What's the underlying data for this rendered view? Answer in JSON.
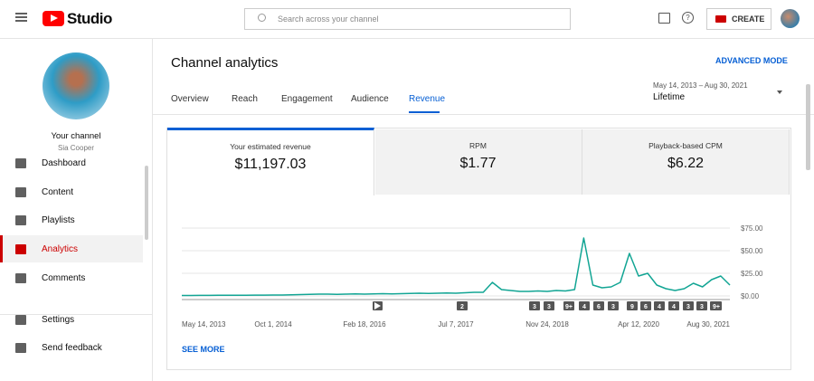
{
  "header": {
    "logo": "Studio",
    "search": "Search across your channel",
    "create": "CREATE"
  },
  "sidebar": {
    "channel_title": "Your channel",
    "channel_name": "Sia Cooper",
    "nav": [
      "Dashboard",
      "Content",
      "Playlists",
      "Analytics",
      "Comments",
      "Settings",
      "Send feedback"
    ],
    "active": 3
  },
  "main": {
    "title": "Channel analytics",
    "advanced": "ADVANCED MODE",
    "tabs": [
      "Overview",
      "Reach",
      "Engagement",
      "Audience",
      "Revenue"
    ],
    "active_tab": 4,
    "date_range": "May 14, 2013 – Aug 30, 2021",
    "period": "Lifetime",
    "metrics": [
      {
        "label": "Your estimated revenue",
        "value": "$11,197.03"
      },
      {
        "label": "RPM",
        "value": "$1.77"
      },
      {
        "label": "Playback-based CPM",
        "value": "$6.22"
      }
    ],
    "see_more": "SEE MORE"
  },
  "chart_data": {
    "type": "line",
    "color": "#12a594",
    "grid": true,
    "categories": [
      "May 14, 2013",
      null,
      null,
      null,
      null,
      null,
      null,
      null,
      null,
      null,
      "Oct 1, 2014",
      null,
      null,
      null,
      null,
      null,
      null,
      null,
      null,
      null,
      "Feb 18, 2016",
      null,
      null,
      null,
      null,
      null,
      null,
      null,
      null,
      null,
      "Jul 7, 2017",
      null,
      null,
      null,
      null,
      null,
      null,
      null,
      null,
      null,
      "Nov 24, 2018",
      null,
      null,
      null,
      null,
      null,
      null,
      null,
      null,
      null,
      "Apr 12, 2020",
      null,
      null,
      null,
      null,
      null,
      null,
      null,
      null,
      null,
      "Aug 30, 2021"
    ],
    "values": [
      0.5,
      0.5,
      0.6,
      0.6,
      0.7,
      0.7,
      0.8,
      0.8,
      0.9,
      0.9,
      1,
      1,
      1.2,
      1.5,
      1.8,
      2,
      2,
      1.8,
      2,
      2.2,
      2,
      2.2,
      2.5,
      2.3,
      2.5,
      2.8,
      3,
      2.8,
      3,
      3.2,
      3,
      3.5,
      4,
      4,
      15,
      7,
      6,
      5,
      5,
      5.5,
      5,
      6,
      5.5,
      7,
      64,
      12,
      9,
      10,
      15,
      47,
      22,
      25,
      12,
      8,
      6,
      8,
      14,
      10,
      18,
      22,
      12
    ],
    "ylim": [
      0,
      75
    ],
    "yticks": [
      {
        "value": 0,
        "label": "$0.00"
      },
      {
        "value": 25,
        "label": "$25.00"
      },
      {
        "value": 50,
        "label": "$50.00"
      },
      {
        "value": 75,
        "label": "$75.00"
      }
    ],
    "annotations": [
      "2",
      "3",
      "3",
      "9+",
      "4",
      "6",
      "3",
      "9",
      "6",
      "4",
      "4",
      "3",
      "3",
      "4",
      "9+"
    ]
  }
}
